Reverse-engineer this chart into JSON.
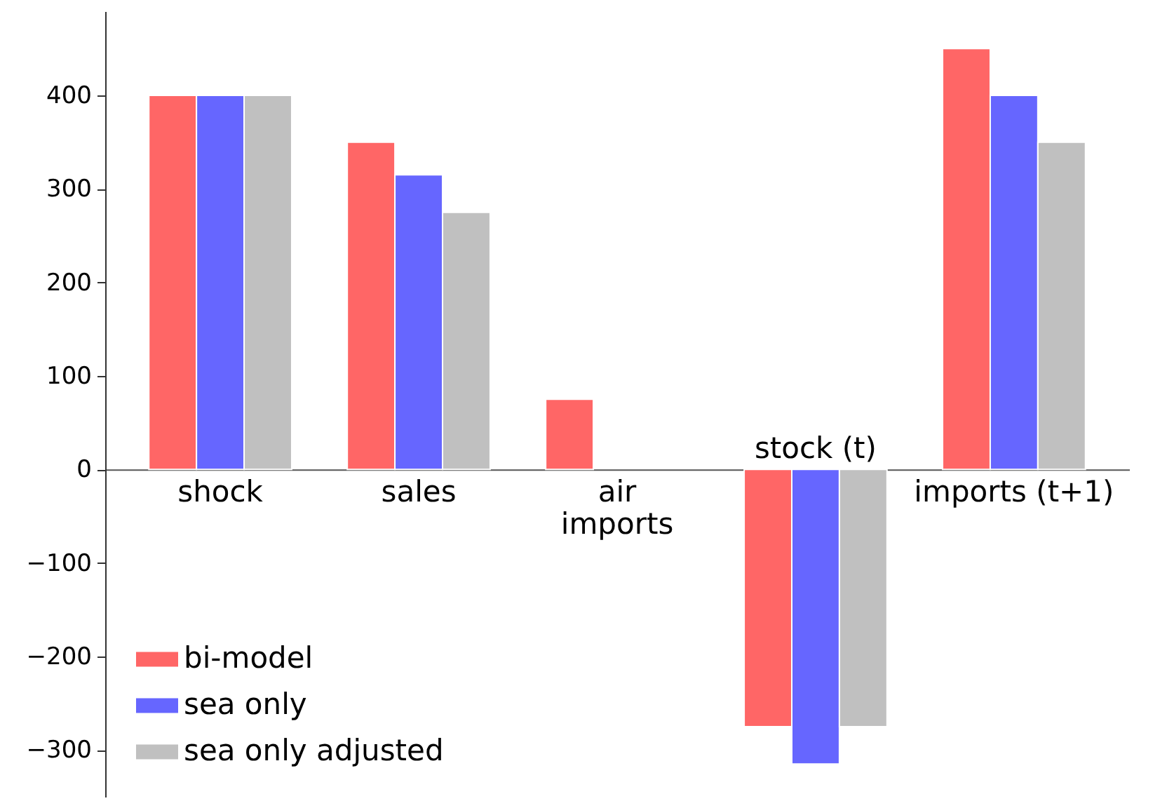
{
  "chart_data": {
    "type": "bar",
    "categories": [
      "shock",
      "sales",
      "air\nimports",
      "stock (t)",
      "imports (t+1)"
    ],
    "series": [
      {
        "name": "bi-model",
        "color": "#ff6666",
        "values": [
          400,
          350,
          75,
          -275,
          450
        ]
      },
      {
        "name": "sea only",
        "color": "#6666ff",
        "values": [
          400,
          315,
          null,
          -315,
          400
        ]
      },
      {
        "name": "sea only adjusted",
        "color": "#c0c0c0",
        "values": [
          400,
          275,
          null,
          -275,
          350
        ]
      }
    ],
    "ylim": [
      -350,
      490
    ],
    "yticks": [
      -300,
      -200,
      -100,
      0,
      100,
      200,
      300,
      400
    ],
    "grid": false,
    "legend": "bottom left"
  }
}
